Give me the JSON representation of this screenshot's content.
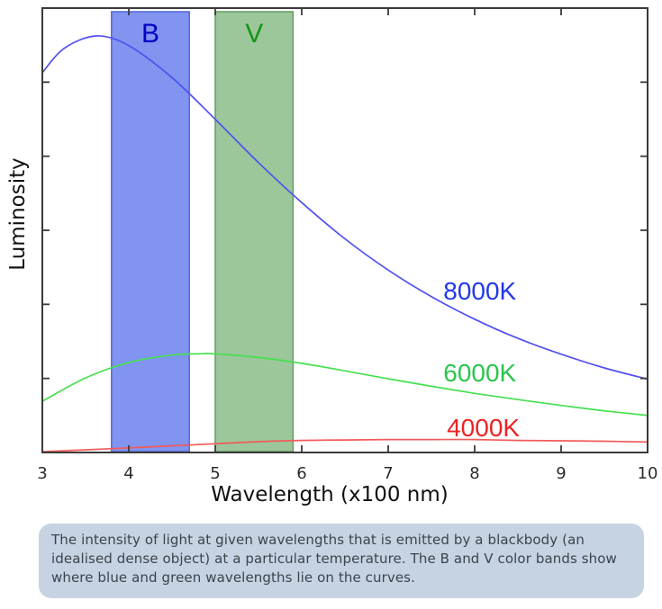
{
  "figure": {
    "background": "#ffffff",
    "frame_color": "#3a3a3a"
  },
  "chart_data": {
    "type": "line",
    "title": "",
    "xlabel": "Wavelength (x100 nm)",
    "ylabel": "Luminosity",
    "xlim": [
      3,
      10
    ],
    "ylim": [
      0,
      1.067
    ],
    "x_ticks": [
      3,
      4,
      5,
      6,
      7,
      8,
      9,
      10
    ],
    "y_minor_tick_count": 5,
    "grid": false,
    "legend_position": "inline-labels",
    "series": [
      {
        "name": "8000K",
        "color": "#5150f0",
        "label_color": "#2338e8",
        "label_x": 8.06,
        "label_y": 0.389,
        "x": [
          3,
          3.25,
          3.62,
          4,
          4.5,
          5,
          5.5,
          6,
          6.5,
          7,
          7.5,
          8,
          8.5,
          9,
          9.5,
          10
        ],
        "y": [
          0.912,
          0.97,
          1.0,
          0.977,
          0.9,
          0.8,
          0.696,
          0.6,
          0.513,
          0.438,
          0.374,
          0.32,
          0.274,
          0.236,
          0.203,
          0.176
        ]
      },
      {
        "name": "6000K",
        "color": "#46e050",
        "label_color": "#2cc44e",
        "label_x": 8.06,
        "label_y": 0.192,
        "x": [
          3,
          3.5,
          4,
          4.5,
          4.85,
          5,
          5.5,
          6,
          6.5,
          7,
          7.5,
          8,
          8.5,
          9,
          9.5,
          10
        ],
        "y": [
          0.123,
          0.179,
          0.216,
          0.234,
          0.237,
          0.237,
          0.228,
          0.214,
          0.196,
          0.177,
          0.159,
          0.142,
          0.127,
          0.113,
          0.1,
          0.089
        ]
      },
      {
        "name": "4000K",
        "color": "#f25b5b",
        "label_color": "#ee2222",
        "label_x": 8.1,
        "label_y": 0.06,
        "x": [
          3,
          4,
          5,
          5.5,
          6,
          6.5,
          7,
          7.5,
          8,
          8.5,
          9,
          9.5,
          10
        ],
        "y": [
          0.002,
          0.011,
          0.021,
          0.026,
          0.029,
          0.03,
          0.031,
          0.031,
          0.031,
          0.029,
          0.028,
          0.027,
          0.025
        ]
      }
    ],
    "bands": [
      {
        "name": "B",
        "x_start": 3.8,
        "x_end": 4.7,
        "fill": "#8094f0",
        "edge": "#5468d6",
        "label_color": "#0000c4"
      },
      {
        "name": "V",
        "x_start": 5.0,
        "x_end": 5.9,
        "fill": "#9cc79a",
        "edge": "#649c66",
        "label_color": "#149614"
      }
    ]
  },
  "caption": {
    "text": "The intensity of light at given wavelengths that is emitted by a blackbody (an idealised dense object) at a particular temperature. The B and V color bands show where blue and green wavelengths lie on the curves.",
    "background": "#c6d3e2",
    "text_color": "#3d444c"
  }
}
